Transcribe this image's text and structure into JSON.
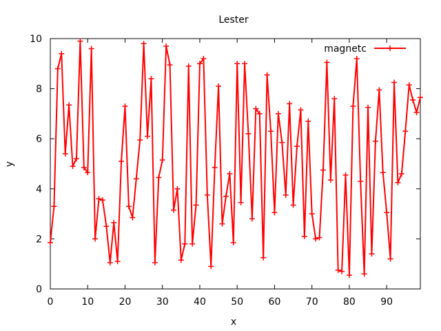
{
  "chart_data": {
    "type": "line",
    "title": "Lester",
    "xlabel": "x",
    "ylabel": "y",
    "xlim": [
      0,
      99
    ],
    "ylim": [
      0,
      10
    ],
    "xticks": [
      "0",
      "10",
      "20",
      "30",
      "40",
      "50",
      "60",
      "70",
      "80",
      "90"
    ],
    "yticks": [
      "0",
      "2",
      "4",
      "6",
      "8",
      "10"
    ],
    "grid": false,
    "legend_position": "top-right",
    "series": [
      {
        "name": "magnetc",
        "color": "#ff0000",
        "marker": "plus",
        "x": [
          0,
          1,
          2,
          3,
          4,
          5,
          6,
          7,
          8,
          9,
          10,
          11,
          12,
          13,
          14,
          15,
          16,
          17,
          18,
          19,
          20,
          21,
          22,
          23,
          24,
          25,
          26,
          27,
          28,
          29,
          30,
          31,
          32,
          33,
          34,
          35,
          36,
          37,
          38,
          39,
          40,
          41,
          42,
          43,
          44,
          45,
          46,
          47,
          48,
          49,
          50,
          51,
          52,
          53,
          54,
          55,
          56,
          57,
          58,
          59,
          60,
          61,
          62,
          63,
          64,
          65,
          66,
          67,
          68,
          69,
          70,
          71,
          72,
          73,
          74,
          75,
          76,
          77,
          78,
          79,
          80,
          81,
          82,
          83,
          84,
          85,
          86,
          87,
          88,
          89,
          90,
          91,
          92,
          93,
          94,
          95,
          96,
          97,
          98,
          99
        ],
        "values": [
          1.85,
          3.3,
          8.8,
          9.4,
          5.4,
          7.35,
          4.9,
          5.2,
          9.9,
          4.85,
          4.65,
          9.6,
          2.0,
          3.6,
          3.55,
          2.5,
          1.05,
          2.65,
          1.1,
          5.1,
          7.3,
          3.3,
          2.85,
          4.4,
          5.95,
          9.8,
          6.1,
          8.4,
          1.05,
          4.45,
          5.15,
          9.7,
          8.95,
          3.15,
          4.0,
          1.15,
          1.8,
          8.9,
          1.8,
          3.35,
          9.0,
          9.2,
          3.75,
          0.9,
          4.85,
          8.1,
          2.6,
          3.7,
          4.6,
          1.85,
          9.0,
          3.45,
          9.0,
          6.2,
          2.8,
          7.2,
          7.0,
          1.25,
          8.55,
          6.3,
          3.05,
          7.0,
          5.85,
          3.75,
          7.4,
          3.35,
          5.7,
          7.15,
          2.1,
          6.7,
          3.0,
          2.0,
          2.05,
          4.75,
          9.05,
          4.35,
          7.6,
          0.75,
          0.7,
          4.55,
          0.55,
          7.3,
          9.2,
          4.3,
          0.6,
          7.25,
          1.4,
          5.9,
          7.95,
          4.65,
          3.05,
          1.2,
          8.25,
          4.25,
          4.6,
          6.3,
          8.15,
          7.55,
          7.05,
          7.65
        ]
      }
    ]
  }
}
